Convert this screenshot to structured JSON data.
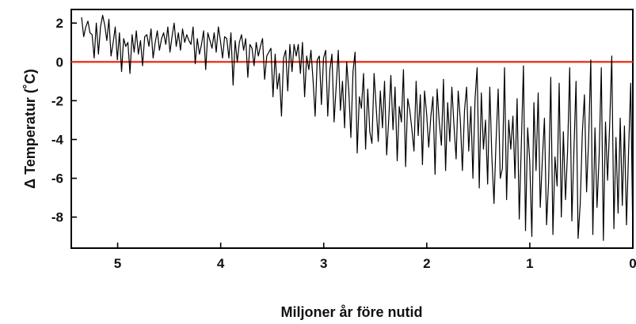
{
  "chart_data": {
    "type": "line",
    "title": "",
    "xlabel": "Miljoner år före nutid",
    "ylabel": "Δ Temperatur  (˚C)",
    "xlim": [
      5.45,
      0
    ],
    "ylim": [
      -9.6,
      2.7
    ],
    "x_ticks": [
      "5",
      "4",
      "3",
      "2",
      "1",
      "0"
    ],
    "y_ticks": [
      "2",
      "0",
      "-2",
      "-4",
      "-6",
      "-8"
    ],
    "grid": false,
    "reference_line": {
      "y": 0,
      "color": "#e8341c"
    },
    "series": [
      {
        "color": "#000000",
        "x_start": 5.35,
        "x_end": 0.0,
        "x_step": 0.02,
        "values": [
          2.3,
          1.3,
          1.8,
          2.1,
          1.5,
          1.4,
          0.2,
          2.0,
          0.4,
          1.8,
          2.4,
          1.9,
          1.1,
          2.2,
          0.3,
          1.0,
          1.8,
          0.1,
          1.5,
          -0.5,
          1.2,
          0.8,
          1.0,
          -0.6,
          1.4,
          0.5,
          1.6,
          0.4,
          1.1,
          -0.2,
          1.3,
          1.4,
          0.8,
          1.7,
          0.2,
          1.0,
          1.6,
          0.6,
          1.2,
          1.5,
          0.9,
          1.8,
          0.5,
          1.3,
          2.0,
          0.8,
          1.5,
          0.6,
          1.7,
          1.0,
          1.4,
          1.1,
          0.9,
          1.8,
          -0.1,
          1.2,
          0.4,
          0.9,
          1.6,
          -0.4,
          1.5,
          1.1,
          0.7,
          1.5,
          0.5,
          1.8,
          1.1,
          0.2,
          1.3,
          1.2,
          0.2,
          1.5,
          -1.2,
          1.1,
          0.0,
          1.0,
          1.4,
          0.6,
          1.2,
          -0.8,
          0.9,
          0.7,
          -0.2,
          1.0,
          0.3,
          0.8,
          1.2,
          -0.9,
          0.3,
          0.5,
          0.7,
          -1.8,
          0.4,
          -1.4,
          -0.6,
          -2.8,
          0.2,
          0.6,
          -1.5,
          0.9,
          -0.5,
          0.9,
          0.3,
          0.9,
          -0.6,
          1.0,
          -1.8,
          0.3,
          -0.4,
          0.6,
          -0.9,
          -2.8,
          0.1,
          0.3,
          -2.2,
          0.2,
          0.6,
          -2.8,
          -0.4,
          0.4,
          -3.1,
          -1.3,
          0.6,
          -2.5,
          -1.0,
          -3.4,
          0.0,
          -1.5,
          -3.9,
          -0.5,
          0.5,
          -4.7,
          -1.8,
          -2.4,
          -0.6,
          -4.5,
          -1.4,
          -3.6,
          -4.2,
          -0.6,
          -2.3,
          -4.1,
          -1.5,
          -3.4,
          -1.0,
          -4.8,
          -2.9,
          -0.7,
          -3.5,
          -1.3,
          -5.1,
          -2.3,
          -3.1,
          -0.4,
          -5.4,
          -1.9,
          -2.5,
          -3.5,
          -4.6,
          -1.0,
          -3.8,
          -1.7,
          -5.3,
          -1.5,
          -2.7,
          -4.4,
          -2.8,
          -1.8,
          -5.8,
          -1.4,
          -3.1,
          -4.3,
          -0.9,
          -5.6,
          -2.1,
          -4.1,
          -1.3,
          -3.3,
          -5.0,
          -1.5,
          -3.0,
          -5.6,
          -2.5,
          -1.3,
          -4.6,
          -2.3,
          -6.0,
          -1.9,
          -0.3,
          -6.5,
          -1.6,
          -4.5,
          -3.0,
          -6.3,
          -1.3,
          -4.9,
          -7.3,
          -4.1,
          -1.4,
          -6.0,
          -5.5,
          -0.3,
          -7.1,
          -3.0,
          -4.5,
          -2.8,
          -6.0,
          -1.9,
          -8.1,
          -4.3,
          -0.2,
          -8.7,
          -3.4,
          -5.1,
          -9.0,
          -2.1,
          -5.6,
          -1.6,
          -7.5,
          -5.0,
          -2.9,
          -8.4,
          -6.1,
          -0.8,
          -8.9,
          -4.9,
          -6.4,
          -1.1,
          -8.0,
          -3.6,
          -7.1,
          -4.6,
          -0.3,
          -8.2,
          -4.6,
          -1.0,
          -9.1,
          -7.3,
          -3.7,
          -1.7,
          -6.7,
          -4.0,
          0.1,
          -8.9,
          -3.4,
          -7.5,
          -4.8,
          -0.3,
          -9.2,
          -3.1,
          -6.1,
          -3.2,
          0.3,
          -8.6,
          -3.9,
          -7.8,
          -2.9,
          -7.4,
          -3.3,
          -8.4,
          -4.5,
          -1.1,
          -9.0
        ]
      }
    ]
  }
}
